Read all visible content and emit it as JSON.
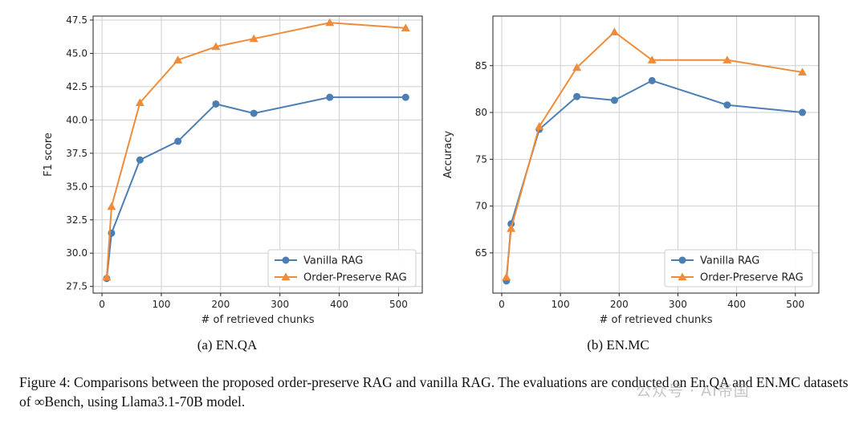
{
  "chart_data": [
    {
      "type": "line",
      "xlabel": "# of retrieved chunks",
      "ylabel": "F1 score",
      "subtitle": "(a) EN.QA",
      "xlim": [
        -15,
        540
      ],
      "ylim": [
        27.0,
        47.8
      ],
      "xticks": [
        0,
        100,
        200,
        300,
        400,
        500
      ],
      "yticks": [
        27.5,
        30.0,
        32.5,
        35.0,
        37.5,
        40.0,
        42.5,
        45.0,
        47.5
      ],
      "ytick_labels": [
        "27.5",
        "30.0",
        "32.5",
        "35.0",
        "37.5",
        "40.0",
        "42.5",
        "45.0",
        "47.5"
      ],
      "grid": true,
      "legend_position": "bottom-right",
      "series": [
        {
          "name": "Vanilla RAG",
          "marker": "circle",
          "color": "#4b7fb4",
          "x": [
            8,
            16,
            64,
            128,
            192,
            256,
            384,
            512
          ],
          "values": [
            28.1,
            31.5,
            37.0,
            38.4,
            41.2,
            40.5,
            41.7,
            41.7
          ]
        },
        {
          "name": "Order-Preserve RAG",
          "marker": "triangle",
          "color": "#ef8c3a",
          "x": [
            8,
            16,
            64,
            128,
            192,
            256,
            384,
            512
          ],
          "values": [
            28.2,
            33.5,
            41.3,
            44.5,
            45.5,
            46.1,
            47.3,
            46.9
          ]
        }
      ]
    },
    {
      "type": "line",
      "xlabel": "# of retrieved chunks",
      "ylabel": "Accuracy",
      "subtitle": "(b) EN.MC",
      "xlim": [
        -15,
        540
      ],
      "ylim": [
        60.7,
        90.3
      ],
      "xticks": [
        0,
        100,
        200,
        300,
        400,
        500
      ],
      "yticks": [
        65,
        70,
        75,
        80,
        85
      ],
      "ytick_labels": [
        "65",
        "70",
        "75",
        "80",
        "85"
      ],
      "grid": true,
      "legend_position": "bottom-right",
      "series": [
        {
          "name": "Vanilla RAG",
          "marker": "circle",
          "color": "#4b7fb4",
          "x": [
            8,
            16,
            64,
            128,
            192,
            256,
            384,
            512
          ],
          "values": [
            62.0,
            68.1,
            78.2,
            81.7,
            81.3,
            83.4,
            80.8,
            80.0
          ]
        },
        {
          "name": "Order-Preserve RAG",
          "marker": "triangle",
          "color": "#ef8c3a",
          "x": [
            8,
            16,
            64,
            128,
            192,
            256,
            384,
            512
          ],
          "values": [
            62.4,
            67.6,
            78.5,
            84.8,
            88.6,
            85.6,
            85.6,
            84.3
          ]
        }
      ]
    }
  ],
  "caption": "Figure 4: Comparisons between the proposed order-preserve RAG and vanilla RAG. The evaluations are conducted on En.QA and EN.MC datasets of ∞Bench, using Llama3.1-70B model.",
  "watermark": "公众号 · AI帝国"
}
